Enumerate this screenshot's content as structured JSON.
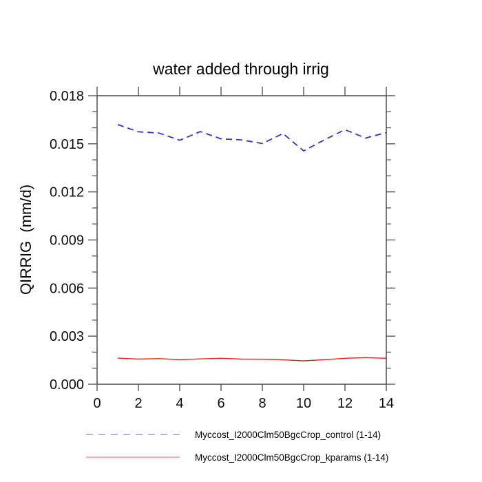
{
  "title": "water added through irrig",
  "chart_data": {
    "type": "line",
    "title": "water added through irrig",
    "xlabel": "",
    "ylabel": "QIRRIG  (mm/d)",
    "xlim": [
      0,
      14
    ],
    "ylim": [
      0,
      0.018
    ],
    "grid": false,
    "legend_position": "bottom",
    "x_major_ticks": [
      0,
      2,
      4,
      6,
      8,
      10,
      12,
      14
    ],
    "x_tick_labels": [
      "0",
      "2",
      "4",
      "6",
      "8",
      "10",
      "12",
      "14"
    ],
    "y_major_ticks": [
      0,
      0.003,
      0.006,
      0.009,
      0.012,
      0.015,
      0.018
    ],
    "y_tick_labels": [
      "0.000",
      "0.003",
      "0.006",
      "0.009",
      "0.012",
      "0.015",
      "0.018"
    ],
    "y_minor_step": 0.001,
    "x": [
      1,
      2,
      3,
      4,
      5,
      6,
      7,
      8,
      9,
      10,
      11,
      12,
      13,
      14
    ],
    "series": [
      {
        "name": "Myccost_I2000Clm50BgcCrop_control (1-14)",
        "color": "#3030cf",
        "style": "dashed",
        "values": [
          0.0162,
          0.01575,
          0.01567,
          0.01522,
          0.01576,
          0.01531,
          0.01524,
          0.01502,
          0.01564,
          0.01456,
          0.01524,
          0.01588,
          0.01536,
          0.0157
        ]
      },
      {
        "name": "Myccost_I2000Clm50BgcCrop_kparams (1-14)",
        "color": "#ee1a1a",
        "style": "solid",
        "values": [
          0.00163,
          0.00157,
          0.0016,
          0.00153,
          0.00158,
          0.00162,
          0.00157,
          0.00156,
          0.00152,
          0.00146,
          0.00153,
          0.00162,
          0.00166,
          0.00162
        ]
      }
    ],
    "axis_color": "#565656"
  }
}
